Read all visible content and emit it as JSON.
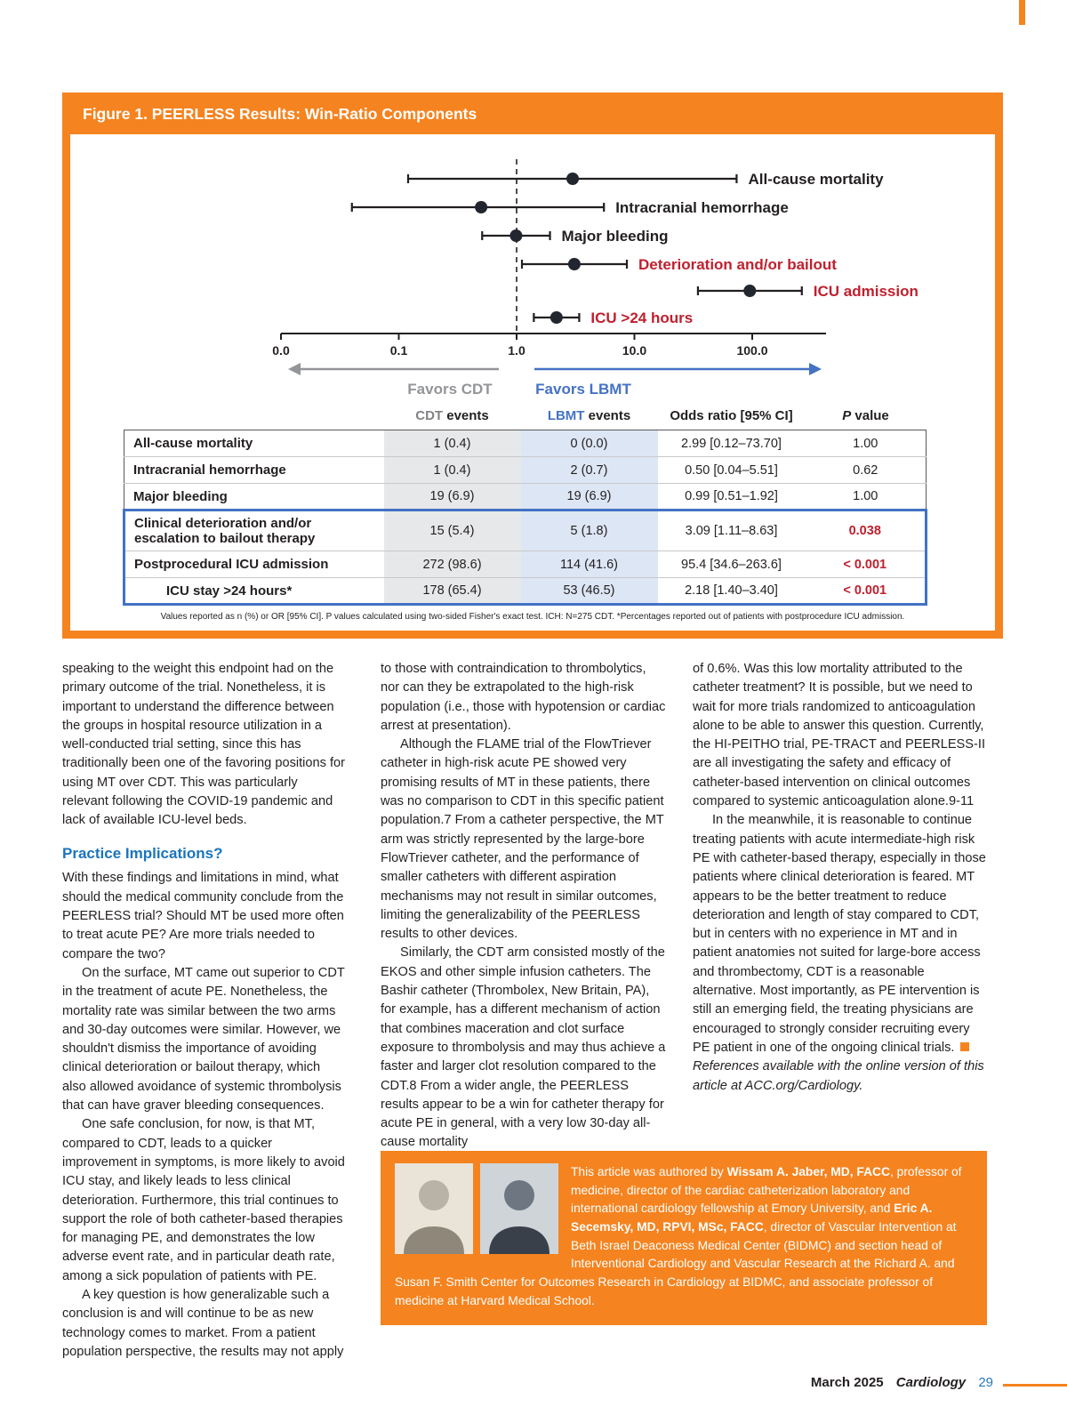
{
  "figure": {
    "title": "Figure 1. PEERLESS Results: Win-Ratio Components",
    "footnote": "Values reported as n (%) or OR [95% CI]. P values calculated using two-sided Fisher's exact test. ICH: N=275 CDT. *Percentages reported out of patients with postprocedure ICU admission.",
    "table": {
      "header": {
        "cdt": "CDT",
        "cdt_rest": " events",
        "lbmt": "LBMT",
        "lbmt_rest": " events",
        "odds": "Odds ratio [95% CI]",
        "p": "P",
        "p_rest": " value"
      },
      "rows": [
        {
          "label": "All-cause mortality",
          "cdt": "1 (0.4)",
          "lbmt": "0 (0.0)",
          "or": "2.99 [0.12–73.70]",
          "p": "1.00"
        },
        {
          "label": "Intracranial hemorrhage",
          "cdt": "1 (0.4)",
          "lbmt": "2 (0.7)",
          "or": "0.50 [0.04–5.51]",
          "p": "0.62"
        },
        {
          "label": "Major bleeding",
          "cdt": "19 (6.9)",
          "lbmt": "19 (6.9)",
          "or": "0.99 [0.51–1.92]",
          "p": "1.00"
        },
        {
          "label": "Clinical deterioration and/or escalation to bailout therapy",
          "cdt": "15 (5.4)",
          "lbmt": "5 (1.8)",
          "or": "3.09 [1.11–8.63]",
          "p": "0.038"
        },
        {
          "label": "Postprocedural ICU admission",
          "cdt": "272 (98.6)",
          "lbmt": "114 (41.6)",
          "or": "95.4 [34.6–263.6]",
          "p": "< 0.001"
        },
        {
          "label": "ICU stay >24 hours*",
          "cdt": "178 (65.4)",
          "lbmt": "53 (46.5)",
          "or": "2.18 [1.40–3.40]",
          "p": "< 0.001"
        }
      ]
    }
  },
  "chart_data": {
    "type": "scatter",
    "subtype": "forest-plot",
    "x_scale": "log10",
    "axis_ticks": [
      "0.0",
      "0.1",
      "1.0",
      "10.0",
      "100.0"
    ],
    "reference_line": 1.0,
    "favors_left": "Favors CDT",
    "favors_right": "Favors LBMT",
    "colors": {
      "red": "#C0202E",
      "black": "#231F20",
      "gray": "#939598",
      "blue": "#4472C4",
      "dot": "#22262e"
    },
    "series": [
      {
        "label": "All-cause mortality",
        "or": 2.99,
        "lo": 0.12,
        "hi": 73.7,
        "color": "black",
        "cdt_events": "1 (0.4)",
        "lbmt_events": "0 (0.0)",
        "p": "1.00"
      },
      {
        "label": "Intracranial hemorrhage",
        "or": 0.5,
        "lo": 0.04,
        "hi": 5.51,
        "color": "black",
        "cdt_events": "1 (0.4)",
        "lbmt_events": "2 (0.7)",
        "p": "0.62"
      },
      {
        "label": "Major bleeding",
        "or": 0.99,
        "lo": 0.51,
        "hi": 1.92,
        "color": "black",
        "cdt_events": "19 (6.9)",
        "lbmt_events": "19 (6.9)",
        "p": "1.00"
      },
      {
        "label": "Deterioration and/or bailout",
        "or": 3.09,
        "lo": 1.11,
        "hi": 8.63,
        "color": "red",
        "cdt_events": "15 (5.4)",
        "lbmt_events": "5 (1.8)",
        "p": "0.038"
      },
      {
        "label": "ICU admission",
        "or": 95.4,
        "lo": 34.6,
        "hi": 263.6,
        "color": "red",
        "cdt_events": "272 (98.6)",
        "lbmt_events": "114 (41.6)",
        "p": "< 0.001"
      },
      {
        "label": "ICU >24 hours",
        "or": 2.18,
        "lo": 1.4,
        "hi": 3.4,
        "color": "red",
        "cdt_events": "178 (65.4)",
        "lbmt_events": "53 (46.5)",
        "p": "< 0.001"
      }
    ]
  },
  "article": {
    "col1": {
      "p1": "speaking to the weight this endpoint had on the primary outcome of the trial. Nonetheless, it is important to understand the difference between the groups in hospital resource utilization in a well-conducted trial setting, since this has traditionally been one of the favoring positions for using MT over CDT. This was particularly relevant following the COVID-19 pandemic and lack of available ICU-level beds.",
      "heading": "Practice Implications?",
      "p2": "With these findings and limitations in mind, what should the medical community conclude from the PEERLESS trial? Should MT be used more often to treat acute PE? Are more trials needed to compare the two?",
      "p3": "On the surface, MT came out superior to CDT in the treatment of acute PE. Nonetheless, the mortality rate was similar between the two arms and 30-day outcomes were similar. However, we shouldn't dismiss the importance of avoiding clinical deterioration or bailout therapy, which also allowed avoidance of systemic thrombolysis that can have graver bleeding consequences.",
      "p4": "One safe conclusion, for now, is that MT, compared to CDT, leads to a quicker improvement in symptoms, is more likely to avoid ICU stay, and likely leads to less clinical deterioration. Furthermore, this trial continues to support the role of both catheter-based therapies for managing PE, and demonstrates the low adverse event rate, and in particular death rate, among a sick population of patients with PE.",
      "p5": "A key question is how generalizable such a conclusion is and will continue to be as new technology comes to market. From a patient population perspective, the results may not apply"
    },
    "col2": {
      "p1": "to those with contraindication to thrombolytics, nor can they be extrapolated to the high-risk population (i.e., those with hypotension or cardiac arrest at presentation).",
      "p2": "Although the FLAME trial of the FlowTriever catheter in high-risk acute PE showed very promising results of MT in these patients, there was no comparison to CDT in this specific patient population.7 From a catheter perspective, the MT arm was strictly represented by the large-bore FlowTriever catheter, and the performance of smaller catheters with different aspiration mechanisms may not result in similar outcomes, limiting the generalizability of the PEERLESS results to other devices.",
      "p3": "Similarly, the CDT arm consisted mostly of the EKOS and other simple infusion catheters. The Bashir catheter (Thrombolex, New Britain, PA), for example, has a different mechanism of action that combines maceration and clot surface exposure to thrombolysis and may thus achieve a faster and larger clot resolution compared to the CDT.8 From a wider angle, the PEERLESS results appear to be a win for catheter therapy for acute PE in general, with a very low 30-day all-cause mortality"
    },
    "col3": {
      "p1": "of 0.6%. Was this low mortality attributed to the catheter treatment? It is possible, but we need to wait for more trials randomized to anticoagulation alone to be able to answer this question. Currently, the HI-PEITHO trial, PE-TRACT and PEERLESS-II are all investigating the safety and efficacy of catheter-based intervention on clinical outcomes compared to systemic anticoagulation alone.9-11",
      "p2": "In the meanwhile, it is reasonable to continue treating patients with acute intermediate-high risk PE with catheter-based therapy, especially in those patients where clinical deterioration is feared. MT appears to be the better treatment to reduce deterioration and length of stay compared to CDT, but in centers with no experience in MT and in patient anatomies not suited for large-bore access and thrombectomy, CDT is a reasonable alternative. Most importantly, as PE intervention is still an emerging field, the treating physicians are encouraged to strongly consider recruiting every PE patient in one of the ongoing clinical trials.",
      "references": "References available with the online version of this article at ACC.org/Cardiology."
    }
  },
  "author_box": {
    "seg1": "This article was authored by ",
    "name1": "Wissam A. Jaber, MD, FACC",
    "seg2": ", professor of medicine, director of the cardiac catheterization laboratory and international cardiology fellowship at Emory University, and ",
    "name2": "Eric A. Secemsky, MD, RPVI, MSc, FACC",
    "seg3": ", director of Vascular Intervention at Beth Israel Deaconess Medical Center (BIDMC) and section head of Interventional Cardiology and Vascular Research at the Richard A. and Susan F. Smith Center for Outcomes Research in Cardiology at BIDMC, and associate professor of medicine at Harvard Medical School."
  },
  "footer": {
    "date": "March 2025",
    "magazine": "Cardiology",
    "page": "29"
  }
}
